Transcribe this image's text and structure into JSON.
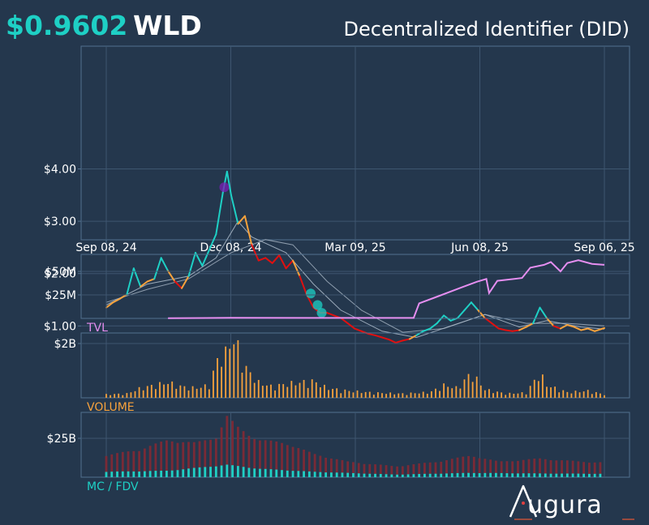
{
  "header": {
    "price": "$0.9602",
    "ticker": "WLD",
    "name": "Decentralized Identifier (DID)"
  },
  "brand": {
    "logo_text": "ugura",
    "logo_mark": "A"
  },
  "colors": {
    "background": "#24374d",
    "grid": "#3e5670",
    "frame": "#52708f",
    "up": "#1ed0c5",
    "down": "#e01010",
    "neutral": "#f7a23c",
    "tvl": "#e58ef0",
    "volume": "#f7a23c",
    "market_cap": "#1ed0c5",
    "fdv": "#7a2a36",
    "moving_average": "#a9b7c6",
    "marker_purple": "#7a1fb5"
  },
  "chart_data": [
    {
      "type": "line",
      "panel": "price",
      "x_ticks": [
        "Sep 08, 24",
        "Dec 08, 24",
        "Mar 09, 25",
        "Jun 08, 25",
        "Sep 06, 25"
      ],
      "x_range": [
        "2024-09-08",
        "2025-09-06"
      ],
      "y_ticks": [
        "$1.00",
        "$2.00",
        "$3.00",
        "$4.00"
      ],
      "ylim": [
        0.6,
        4.3
      ],
      "grid": true,
      "series": [
        {
          "role": "price",
          "points": [
            [
              "2024-09-08",
              1.35
            ],
            [
              "2024-09-13",
              1.45
            ],
            [
              "2024-09-18",
              1.52
            ],
            [
              "2024-09-23",
              1.6
            ],
            [
              "2024-09-28",
              2.1
            ],
            [
              "2024-10-03",
              1.75
            ],
            [
              "2024-10-08",
              1.85
            ],
            [
              "2024-10-13",
              1.9
            ],
            [
              "2024-10-18",
              2.3
            ],
            [
              "2024-10-23",
              2.05
            ],
            [
              "2024-10-28",
              1.85
            ],
            [
              "2024-11-02",
              1.72
            ],
            [
              "2024-11-07",
              1.95
            ],
            [
              "2024-11-12",
              2.4
            ],
            [
              "2024-11-17",
              2.15
            ],
            [
              "2024-11-22",
              2.45
            ],
            [
              "2024-11-27",
              2.75
            ],
            [
              "2024-12-02",
              3.55
            ],
            [
              "2024-12-05",
              3.95
            ],
            [
              "2024-12-08",
              3.5
            ],
            [
              "2024-12-13",
              2.95
            ],
            [
              "2024-12-18",
              3.1
            ],
            [
              "2024-12-23",
              2.55
            ],
            [
              "2024-12-28",
              2.25
            ],
            [
              "2025-01-02",
              2.3
            ],
            [
              "2025-01-07",
              2.2
            ],
            [
              "2025-01-12",
              2.35
            ],
            [
              "2025-01-17",
              2.1
            ],
            [
              "2025-01-22",
              2.25
            ],
            [
              "2025-01-27",
              1.95
            ],
            [
              "2025-02-01",
              1.6
            ],
            [
              "2025-02-06",
              1.35
            ],
            [
              "2025-02-11",
              1.25
            ],
            [
              "2025-02-16",
              1.25
            ],
            [
              "2025-02-21",
              1.2
            ],
            [
              "2025-02-26",
              1.15
            ],
            [
              "2025-03-03",
              1.05
            ],
            [
              "2025-03-08",
              0.95
            ],
            [
              "2025-03-13",
              0.9
            ],
            [
              "2025-03-18",
              0.85
            ],
            [
              "2025-03-23",
              0.82
            ],
            [
              "2025-03-28",
              0.78
            ],
            [
              "2025-04-02",
              0.74
            ],
            [
              "2025-04-07",
              0.68
            ],
            [
              "2025-04-12",
              0.72
            ],
            [
              "2025-04-17",
              0.75
            ],
            [
              "2025-04-22",
              0.82
            ],
            [
              "2025-04-27",
              0.9
            ],
            [
              "2025-05-02",
              0.95
            ],
            [
              "2025-05-07",
              1.05
            ],
            [
              "2025-05-12",
              1.2
            ],
            [
              "2025-05-17",
              1.1
            ],
            [
              "2025-05-22",
              1.15
            ],
            [
              "2025-05-27",
              1.3
            ],
            [
              "2025-06-01",
              1.45
            ],
            [
              "2025-06-06",
              1.3
            ],
            [
              "2025-06-11",
              1.15
            ],
            [
              "2025-06-16",
              1.05
            ],
            [
              "2025-06-21",
              0.95
            ],
            [
              "2025-06-26",
              0.92
            ],
            [
              "2025-07-01",
              0.9
            ],
            [
              "2025-07-06",
              0.92
            ],
            [
              "2025-07-11",
              0.98
            ],
            [
              "2025-07-16",
              1.05
            ],
            [
              "2025-07-21",
              1.35
            ],
            [
              "2025-07-26",
              1.15
            ],
            [
              "2025-07-31",
              1.0
            ],
            [
              "2025-08-05",
              0.95
            ],
            [
              "2025-08-10",
              1.02
            ],
            [
              "2025-08-15",
              0.98
            ],
            [
              "2025-08-20",
              0.92
            ],
            [
              "2025-08-25",
              0.95
            ],
            [
              "2025-08-30",
              0.9
            ],
            [
              "2025-09-06",
              0.96
            ]
          ]
        },
        {
          "role": "moving_average_fast",
          "points": [
            [
              "2024-09-08",
              1.4
            ],
            [
              "2024-10-08",
              1.8
            ],
            [
              "2024-11-07",
              1.95
            ],
            [
              "2024-11-27",
              2.3
            ],
            [
              "2024-12-13",
              3.0
            ],
            [
              "2024-12-23",
              2.7
            ],
            [
              "2025-01-17",
              2.4
            ],
            [
              "2025-02-06",
              1.8
            ],
            [
              "2025-02-26",
              1.3
            ],
            [
              "2025-03-28",
              0.9
            ],
            [
              "2025-04-22",
              0.78
            ],
            [
              "2025-05-17",
              1.0
            ],
            [
              "2025-06-11",
              1.22
            ],
            [
              "2025-07-06",
              0.98
            ],
            [
              "2025-07-26",
              1.1
            ],
            [
              "2025-08-20",
              0.98
            ],
            [
              "2025-09-06",
              0.94
            ]
          ]
        },
        {
          "role": "moving_average_slow",
          "points": [
            [
              "2024-09-08",
              1.45
            ],
            [
              "2024-10-08",
              1.7
            ],
            [
              "2024-11-07",
              1.9
            ],
            [
              "2024-12-08",
              2.4
            ],
            [
              "2025-01-02",
              2.65
            ],
            [
              "2025-01-22",
              2.55
            ],
            [
              "2025-02-16",
              1.85
            ],
            [
              "2025-03-13",
              1.3
            ],
            [
              "2025-04-12",
              0.88
            ],
            [
              "2025-05-12",
              0.95
            ],
            [
              "2025-06-11",
              1.22
            ],
            [
              "2025-07-11",
              1.05
            ],
            [
              "2025-08-10",
              1.05
            ],
            [
              "2025-09-06",
              1.0
            ]
          ]
        }
      ],
      "markers": [
        {
          "date": "2024-12-03",
          "value": 3.65,
          "color": "#7a1fb5"
        },
        {
          "date": "2025-02-04",
          "value": 1.62,
          "color": "#1ed0c5"
        },
        {
          "date": "2025-02-09",
          "value": 1.4,
          "color": "#1ed0c5"
        },
        {
          "date": "2025-02-12",
          "value": 1.25,
          "color": "#1ed0c5"
        }
      ]
    },
    {
      "type": "line",
      "panel": "tvl",
      "label": "TVL",
      "y_ticks": [
        "$25M",
        "$50M"
      ],
      "ylim": [
        0,
        65
      ],
      "points": [
        [
          "2024-10-23",
          0.3
        ],
        [
          "2024-12-08",
          0.6
        ],
        [
          "2025-03-09",
          0.5
        ],
        [
          "2025-04-20",
          0.5
        ],
        [
          "2025-04-24",
          16
        ],
        [
          "2025-05-05",
          22
        ],
        [
          "2025-05-25",
          33
        ],
        [
          "2025-06-05",
          39
        ],
        [
          "2025-06-12",
          42
        ],
        [
          "2025-06-14",
          27
        ],
        [
          "2025-06-20",
          40
        ],
        [
          "2025-07-08",
          43
        ],
        [
          "2025-07-14",
          54
        ],
        [
          "2025-07-24",
          57
        ],
        [
          "2025-07-29",
          60
        ],
        [
          "2025-08-05",
          50
        ],
        [
          "2025-08-10",
          59
        ],
        [
          "2025-08-18",
          62
        ],
        [
          "2025-08-28",
          58
        ],
        [
          "2025-09-06",
          57
        ]
      ]
    },
    {
      "type": "bar",
      "panel": "volume",
      "label": "VOLUME",
      "y_ticks": [
        "$2B"
      ],
      "ylim": [
        0,
        2.8
      ],
      "points": [
        [
          "2024-09-08",
          0.12
        ],
        [
          "2024-09-23",
          0.15
        ],
        [
          "2024-10-03",
          0.35
        ],
        [
          "2024-10-13",
          0.45
        ],
        [
          "2024-10-23",
          0.55
        ],
        [
          "2024-11-02",
          0.4
        ],
        [
          "2024-11-12",
          0.35
        ],
        [
          "2024-11-22",
          0.45
        ],
        [
          "2024-11-29",
          1.5
        ],
        [
          "2024-12-05",
          1.6
        ],
        [
          "2024-12-08",
          2.2
        ],
        [
          "2024-12-13",
          1.8
        ],
        [
          "2024-12-18",
          1.1
        ],
        [
          "2024-12-28",
          0.55
        ],
        [
          "2025-01-07",
          0.4
        ],
        [
          "2025-01-17",
          0.5
        ],
        [
          "2025-01-27",
          0.55
        ],
        [
          "2025-02-06",
          0.6
        ],
        [
          "2025-02-16",
          0.35
        ],
        [
          "2025-03-03",
          0.25
        ],
        [
          "2025-03-23",
          0.18
        ],
        [
          "2025-04-12",
          0.15
        ],
        [
          "2025-05-02",
          0.2
        ],
        [
          "2025-05-12",
          0.45
        ],
        [
          "2025-05-22",
          0.35
        ],
        [
          "2025-06-01",
          0.9
        ],
        [
          "2025-06-11",
          0.3
        ],
        [
          "2025-06-26",
          0.15
        ],
        [
          "2025-07-11",
          0.18
        ],
        [
          "2025-07-21",
          0.9
        ],
        [
          "2025-07-26",
          0.45
        ],
        [
          "2025-08-10",
          0.2
        ],
        [
          "2025-08-25",
          0.25
        ],
        [
          "2025-09-06",
          0.12
        ]
      ]
    },
    {
      "type": "bar",
      "panel": "market_cap",
      "label": "MC / FDV",
      "y_ticks": [
        "$25B"
      ],
      "ylim": [
        0,
        45
      ],
      "series": [
        {
          "role": "fdv",
          "points": [
            [
              "2024-09-08",
              14
            ],
            [
              "2024-10-03",
              18
            ],
            [
              "2024-10-23",
              24
            ],
            [
              "2024-11-12",
              22
            ],
            [
              "2024-11-27",
              26
            ],
            [
              "2024-12-05",
              39
            ],
            [
              "2024-12-13",
              32
            ],
            [
              "2024-12-28",
              24
            ],
            [
              "2025-01-17",
              22
            ],
            [
              "2025-02-06",
              15
            ],
            [
              "2025-03-03",
              10
            ],
            [
              "2025-04-07",
              7
            ],
            [
              "2025-05-07",
              10
            ],
            [
              "2025-06-01",
              14
            ],
            [
              "2025-06-21",
              10
            ],
            [
              "2025-07-21",
              12
            ],
            [
              "2025-08-20",
              10
            ],
            [
              "2025-09-06",
              9.6
            ]
          ]
        },
        {
          "role": "market_cap",
          "points": [
            [
              "2024-09-08",
              3.5
            ],
            [
              "2024-10-23",
              4.2
            ],
            [
              "2024-12-05",
              8.0
            ],
            [
              "2024-12-28",
              5.5
            ],
            [
              "2025-02-06",
              3.5
            ],
            [
              "2025-04-07",
              1.7
            ],
            [
              "2025-06-01",
              2.8
            ],
            [
              "2025-07-21",
              2.4
            ],
            [
              "2025-09-06",
              2.2
            ]
          ]
        }
      ]
    }
  ]
}
